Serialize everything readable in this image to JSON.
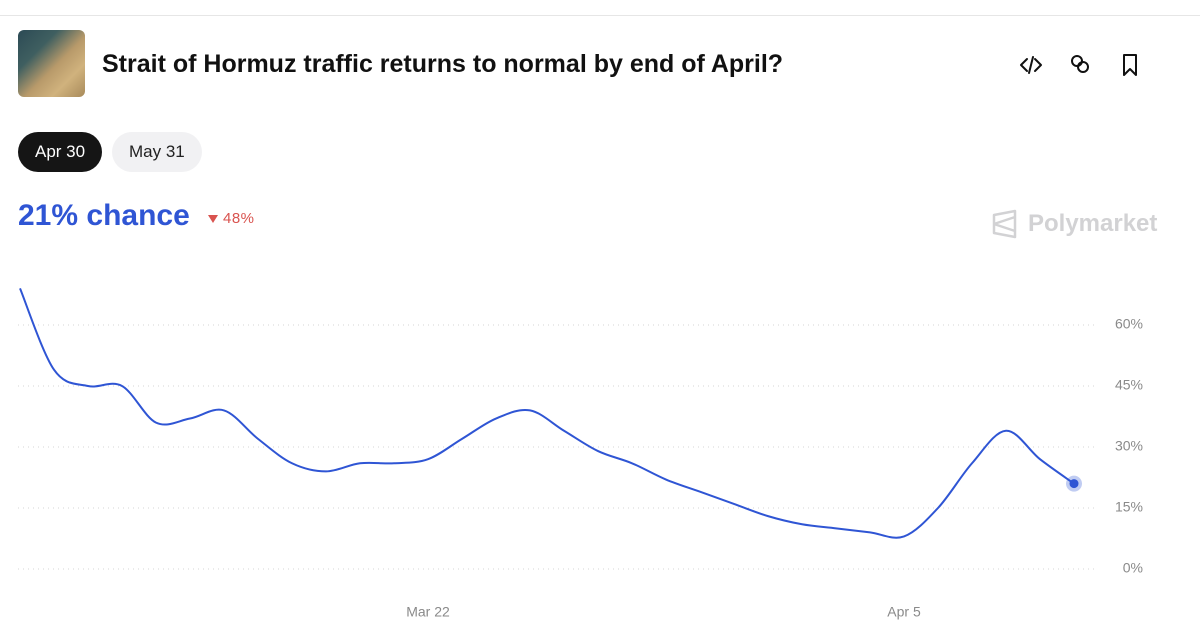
{
  "header": {
    "title": "Strait of Hormuz traffic returns to normal by end of April?"
  },
  "tabs": [
    "Apr 30",
    "May 31"
  ],
  "headline": {
    "chance": "21% chance",
    "change": "48%"
  },
  "brand": "Polymarket",
  "chart_data": {
    "type": "line",
    "x": [
      "Mar 10",
      "Mar 11",
      "Mar 12",
      "Mar 13",
      "Mar 14",
      "Mar 15",
      "Mar 16",
      "Mar 17",
      "Mar 18",
      "Mar 19",
      "Mar 20",
      "Mar 21",
      "Mar 22",
      "Mar 23",
      "Mar 24",
      "Mar 25",
      "Mar 26",
      "Mar 27",
      "Mar 28",
      "Mar 29",
      "Mar 30",
      "Mar 31",
      "Apr 1",
      "Apr 2",
      "Apr 3",
      "Apr 4",
      "Apr 5",
      "Apr 6",
      "Apr 7",
      "Apr 8",
      "Apr 9",
      "Apr 10"
    ],
    "series": [
      {
        "color": "#2f55d4",
        "values": [
          69,
          49,
          45,
          45,
          36,
          37,
          39,
          32,
          26,
          24,
          26,
          26,
          27,
          32,
          37,
          39,
          34,
          29,
          26,
          22,
          19,
          16,
          13,
          11,
          10,
          9,
          8,
          15,
          26,
          34,
          27,
          21
        ]
      }
    ],
    "xticks": [
      "Mar 22",
      "Apr 5"
    ],
    "ylim": [
      0,
      60
    ],
    "yticks": [
      {
        "value": 0,
        "label": "0%"
      },
      {
        "value": 15,
        "label": "15%"
      },
      {
        "value": 30,
        "label": "30%"
      },
      {
        "value": 45,
        "label": "45%"
      },
      {
        "value": 60,
        "label": "60%"
      }
    ],
    "grid": true
  }
}
